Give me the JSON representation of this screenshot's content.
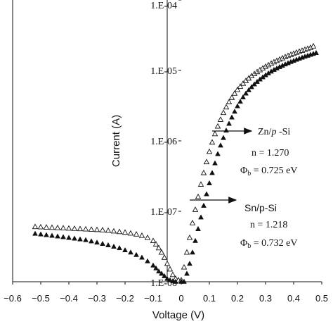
{
  "chart_data": {
    "type": "scatter",
    "xlabel": "Voltage (V)",
    "ylabel": "Current (A)",
    "xlim": [
      -0.6,
      0.5
    ],
    "ylim": [
      1e-08,
      0.0001
    ],
    "yscale": "log",
    "x_ticks": [
      "−0.6",
      "−0.5",
      "−0.4",
      "−0.3",
      "−0.2",
      "−0.1",
      "0",
      "0.1",
      "0.2",
      "0.3",
      "0.4",
      "0.5"
    ],
    "y_ticks": [
      "1.E-08",
      "1.E-07",
      "1.E-06",
      "1.E-05",
      "1.E-04"
    ],
    "grid": false,
    "series": [
      {
        "name": "Zn/p -Si",
        "marker": "open-triangle",
        "color": "#111111",
        "x": [
          -0.52,
          -0.5,
          -0.48,
          -0.46,
          -0.44,
          -0.42,
          -0.4,
          -0.38,
          -0.36,
          -0.34,
          -0.32,
          -0.3,
          -0.28,
          -0.26,
          -0.24,
          -0.22,
          -0.2,
          -0.18,
          -0.16,
          -0.14,
          -0.12,
          -0.1,
          -0.09,
          -0.08,
          -0.07,
          -0.06,
          -0.05,
          -0.04,
          -0.03,
          -0.02,
          -0.01,
          0.0,
          0.01,
          0.02,
          0.03,
          0.04,
          0.05,
          0.06,
          0.07,
          0.08,
          0.09,
          0.1,
          0.11,
          0.12,
          0.13,
          0.14,
          0.15,
          0.16,
          0.17,
          0.18,
          0.19,
          0.2,
          0.21,
          0.22,
          0.23,
          0.24,
          0.25,
          0.26,
          0.27,
          0.28,
          0.29,
          0.3,
          0.31,
          0.32,
          0.33,
          0.34,
          0.35,
          0.36,
          0.37,
          0.38,
          0.39,
          0.4,
          0.41,
          0.42,
          0.43,
          0.44,
          0.45,
          0.46,
          0.47
        ],
        "y": [
          6e-08,
          5.95e-08,
          5.9e-08,
          5.85e-08,
          5.8e-08,
          5.75e-08,
          5.7e-08,
          5.65e-08,
          5.6e-08,
          5.55e-08,
          5.5e-08,
          5.45e-08,
          5.4e-08,
          5.3e-08,
          5.2e-08,
          5.1e-08,
          5e-08,
          4.85e-08,
          4.7e-08,
          4.5e-08,
          4.2e-08,
          3.8e-08,
          3.4e-08,
          3e-08,
          2.6e-08,
          2.2e-08,
          1.8e-08,
          1.5e-08,
          1.25e-08,
          1.1e-08,
          1.05e-08,
          1.05e-08,
          1.6e-08,
          2.6e-08,
          4.2e-08,
          6.8e-08,
          1.05e-07,
          1.6e-07,
          2.4e-07,
          3.5e-07,
          5e-07,
          7e-07,
          9.5e-07,
          1.25e-06,
          1.6e-06,
          2e-06,
          2.5e-06,
          3e-06,
          3.55e-06,
          4.1e-06,
          4.7e-06,
          5.3e-06,
          5.9e-06,
          6.5e-06,
          7.1e-06,
          7.7e-06,
          8.3e-06,
          8.9e-06,
          9.5e-06,
          1.01e-05,
          1.07e-05,
          1.13e-05,
          1.19e-05,
          1.25e-05,
          1.31e-05,
          1.37e-05,
          1.43e-05,
          1.49e-05,
          1.55e-05,
          1.61e-05,
          1.67e-05,
          1.73e-05,
          1.79e-05,
          1.85e-05,
          1.91e-05,
          1.97e-05,
          2.03e-05,
          2.1e-05,
          2.2e-05
        ]
      },
      {
        "name": "Sn/p-Si",
        "marker": "filled-triangle",
        "color": "#111111",
        "x": [
          -0.52,
          -0.5,
          -0.48,
          -0.46,
          -0.44,
          -0.42,
          -0.4,
          -0.38,
          -0.36,
          -0.34,
          -0.32,
          -0.3,
          -0.28,
          -0.26,
          -0.24,
          -0.22,
          -0.2,
          -0.18,
          -0.16,
          -0.14,
          -0.12,
          -0.1,
          -0.09,
          -0.08,
          -0.07,
          -0.06,
          -0.05,
          -0.04,
          -0.03,
          -0.02,
          0.0,
          0.01,
          0.02,
          0.03,
          0.04,
          0.05,
          0.06,
          0.07,
          0.08,
          0.09,
          0.1,
          0.11,
          0.12,
          0.13,
          0.14,
          0.15,
          0.16,
          0.17,
          0.18,
          0.19,
          0.2,
          0.21,
          0.22,
          0.23,
          0.24,
          0.25,
          0.26,
          0.27,
          0.28,
          0.29,
          0.3,
          0.31,
          0.32,
          0.33,
          0.34,
          0.35,
          0.36,
          0.37,
          0.38,
          0.39,
          0.4,
          0.41,
          0.42,
          0.43,
          0.44,
          0.45,
          0.46,
          0.47,
          0.48
        ],
        "y": [
          4.8e-08,
          4.7e-08,
          4.6e-08,
          4.5e-08,
          4.4e-08,
          4.3e-08,
          4.2e-08,
          4.1e-08,
          4e-08,
          3.9e-08,
          3.75e-08,
          3.6e-08,
          3.45e-08,
          3.3e-08,
          3.15e-08,
          3e-08,
          2.8e-08,
          2.6e-08,
          2.4e-08,
          2.2e-08,
          1.95e-08,
          1.7e-08,
          1.55e-08,
          1.4e-08,
          1.3e-08,
          1.2e-08,
          1.1e-08,
          1.05e-08,
          1.02e-08,
          1e-08,
          1e-08,
          1e-08,
          1.3e-08,
          1.8e-08,
          2.6e-08,
          3.8e-08,
          5.6e-08,
          8.2e-08,
          1.2e-07,
          1.75e-07,
          2.5e-07,
          3.5e-07,
          4.8e-07,
          6.5e-07,
          8.6e-07,
          1.1e-06,
          1.4e-06,
          1.75e-06,
          2.15e-06,
          2.6e-06,
          3.1e-06,
          3.6e-06,
          4.15e-06,
          4.7e-06,
          5.25e-06,
          5.8e-06,
          6.35e-06,
          6.9e-06,
          7.45e-06,
          8e-06,
          8.55e-06,
          9.1e-06,
          9.65e-06,
          1.02e-05,
          1.07e-05,
          1.12e-05,
          1.17e-05,
          1.22e-05,
          1.27e-05,
          1.32e-05,
          1.37e-05,
          1.42e-05,
          1.47e-05,
          1.52e-05,
          1.57e-05,
          1.62e-05,
          1.67e-05,
          1.72e-05,
          1.77e-05
        ]
      }
    ],
    "annotations": {
      "zn": {
        "label_prefix": "Zn/",
        "label_italic": "p",
        "label_suffix": " -Si",
        "n": "n = 1.270",
        "phi_symbol": "Φ",
        "phi_sub": "b",
        "phi_value": " = 0.725 eV"
      },
      "sn": {
        "label": "Sn/p-Si",
        "n": "n = 1.218",
        "phi_symbol": "Φ",
        "phi_sub": "b",
        "phi_value": " = 0.732 eV"
      }
    }
  }
}
